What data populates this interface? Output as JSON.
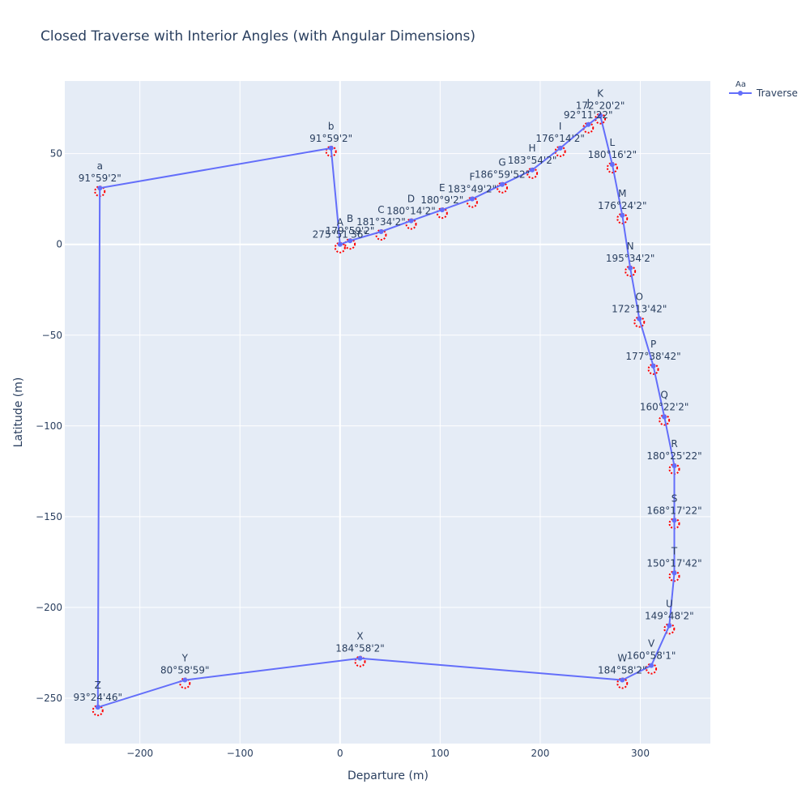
{
  "chart_data": {
    "type": "line",
    "title": "Closed Traverse with Interior Angles (with Angular Dimensions)",
    "xlabel": "Departure (m)",
    "ylabel": "Latitude (m)",
    "xlim": [
      -275,
      370
    ],
    "ylim": [
      -275,
      90
    ],
    "xticks": [
      -200,
      -100,
      0,
      100,
      200,
      300
    ],
    "yticks": [
      -250,
      -200,
      -150,
      -100,
      -50,
      0,
      50
    ],
    "grid": true,
    "legend": {
      "header": "Aa",
      "placement": "top-right outside plot"
    },
    "series": [
      {
        "name": "Traverse",
        "color": "#636efa",
        "points": [
          {
            "label": "A",
            "angle": "275°51'36\"",
            "x": 0,
            "y": 0
          },
          {
            "label": "B",
            "angle": "179°59'2\"",
            "x": 10,
            "y": 2
          },
          {
            "label": "C",
            "angle": "181°34'2\"",
            "x": 41,
            "y": 7
          },
          {
            "label": "D",
            "angle": "180°14'2\"",
            "x": 71,
            "y": 13
          },
          {
            "label": "E",
            "angle": "180°9'2\"",
            "x": 102,
            "y": 19
          },
          {
            "label": "F",
            "angle": "183°49'2\"",
            "x": 132,
            "y": 25
          },
          {
            "label": "G",
            "angle": "186°59'52\"",
            "x": 162,
            "y": 33
          },
          {
            "label": "H",
            "angle": "183°54'2\"",
            "x": 192,
            "y": 41
          },
          {
            "label": "I",
            "angle": "176°14'2\"",
            "x": 220,
            "y": 53
          },
          {
            "label": "J",
            "angle": "92°11'22\"",
            "x": 248,
            "y": 66
          },
          {
            "label": "K",
            "angle": "172°20'2\"",
            "x": 260,
            "y": 71
          },
          {
            "label": "L",
            "angle": "180°16'2\"",
            "x": 272,
            "y": 44
          },
          {
            "label": "M",
            "angle": "176°24'2\"",
            "x": 282,
            "y": 16
          },
          {
            "label": "N",
            "angle": "195°34'2\"",
            "x": 290,
            "y": -13
          },
          {
            "label": "O",
            "angle": "172°13'42\"",
            "x": 299,
            "y": -41
          },
          {
            "label": "P",
            "angle": "177°38'42\"",
            "x": 313,
            "y": -67
          },
          {
            "label": "Q",
            "angle": "160°22'2\"",
            "x": 324,
            "y": -95
          },
          {
            "label": "R",
            "angle": "180°25'22\"",
            "x": 334,
            "y": -122
          },
          {
            "label": "S",
            "angle": "168°17'22\"",
            "x": 334,
            "y": -152
          },
          {
            "label": "T",
            "angle": "150°17'42\"",
            "x": 334,
            "y": -181
          },
          {
            "label": "U",
            "angle": "149°48'2\"",
            "x": 329,
            "y": -210
          },
          {
            "label": "V",
            "angle": "160°58'1\"",
            "x": 311,
            "y": -232
          },
          {
            "label": "W",
            "angle": "184°58'2\"",
            "x": 282,
            "y": -240
          },
          {
            "label": "X",
            "angle": "184°58'2\"",
            "x": 20,
            "y": -228
          },
          {
            "label": "Y",
            "angle": "80°58'59\"",
            "x": -155,
            "y": -240
          },
          {
            "label": "Z",
            "angle": "93°24'46\"",
            "x": -242,
            "y": -255
          },
          {
            "label": "a",
            "angle": "91°59'2\"",
            "x": -240,
            "y": 31
          },
          {
            "label": "b",
            "angle": "91°59'2\"",
            "x": -9,
            "y": 53
          }
        ]
      }
    ],
    "annotation_color": "#ff0000"
  }
}
